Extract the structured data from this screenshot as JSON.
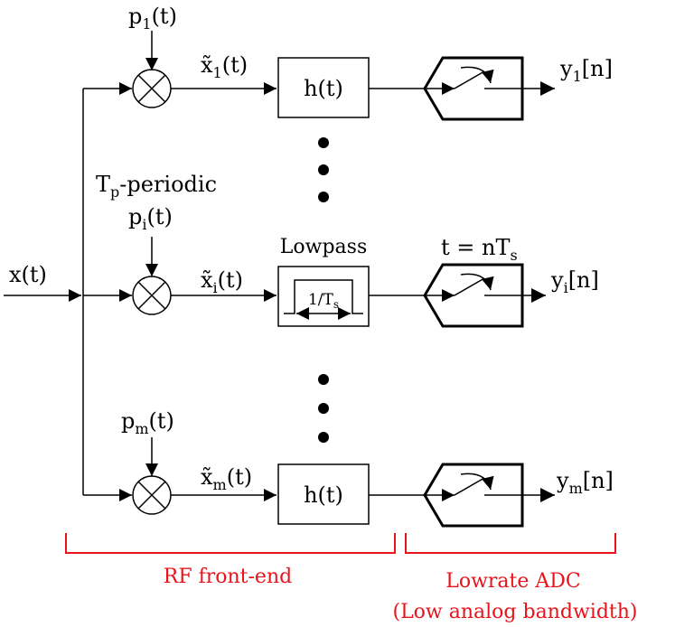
{
  "input": {
    "label": "x(t)"
  },
  "branches": [
    {
      "pulse": "p",
      "pulse_sub": "1",
      "pulse_arg": "(t)",
      "mixed": "x̃",
      "mixed_sub": "1",
      "mixed_arg": "(t)",
      "filter": "h(t)",
      "out": "y",
      "out_sub": "1",
      "out_arg": "[n]"
    },
    {
      "pulse": "p",
      "pulse_sub": "i",
      "pulse_arg": "(t)",
      "mixed": "x̃",
      "mixed_sub": "i",
      "mixed_arg": "(t)",
      "filter_top": "Lowpass",
      "filter_bw": "1/T",
      "filter_bw_sub": "s",
      "out": "y",
      "out_sub": "i",
      "out_arg": "[n]"
    },
    {
      "pulse": "p",
      "pulse_sub": "m",
      "pulse_arg": "(t)",
      "mixed": "x̃",
      "mixed_sub": "m",
      "mixed_arg": "(t)",
      "filter": "h(t)",
      "out": "y",
      "out_sub": "m",
      "out_arg": "[n]"
    }
  ],
  "periodic": {
    "T": "T",
    "sub": "p",
    "rest": "-periodic"
  },
  "sampling": {
    "lhs": "t = nT",
    "sub": "s"
  },
  "groups": {
    "rf": "RF front-end",
    "adc_line1": "Lowrate ADC",
    "adc_line2": "(Low analog bandwidth)"
  },
  "colors": {
    "bracket": "#e8141c",
    "ink": "#000000"
  }
}
